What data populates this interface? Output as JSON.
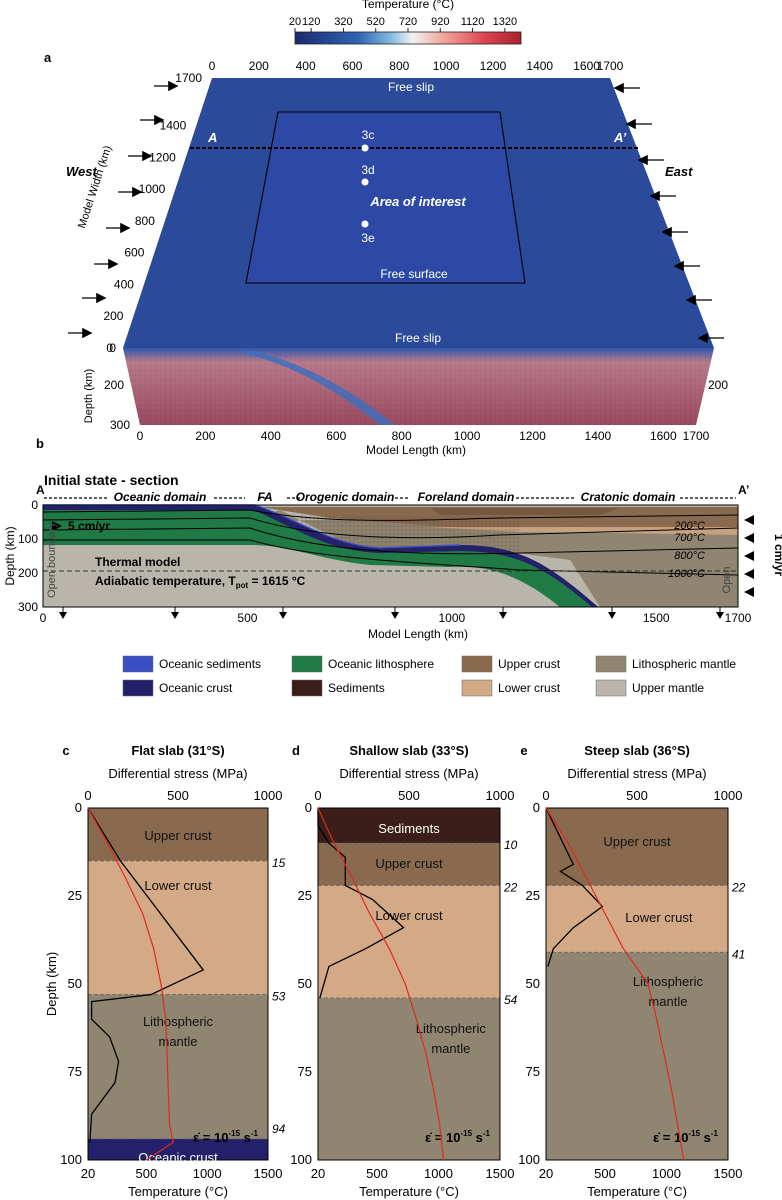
{
  "colorbar": {
    "title": "Temperature (°C)",
    "ticks": [
      "20",
      "120",
      "320",
      "520",
      "720",
      "920",
      "1120",
      "1320"
    ],
    "colors": [
      "#1b2a6e",
      "#2f63b5",
      "#7fb8df",
      "#f2f2f2",
      "#f1a39a",
      "#d9414d",
      "#a8232f"
    ]
  },
  "panel_a": {
    "label": "a",
    "west": "West",
    "east": "East",
    "ylabel_width": "Model Width (km)",
    "ylabel_depth": "Depth (km)",
    "xlabel": "Model Length (km)",
    "top_ticks": [
      "0",
      "200",
      "400",
      "600",
      "800",
      "1000",
      "1200",
      "1400",
      "1600",
      "1700"
    ],
    "width_ticks": [
      "1700",
      "1400",
      "1200",
      "1000",
      "800",
      "600",
      "400",
      "200",
      "0"
    ],
    "depth_ticks_left": [
      "200",
      "300"
    ],
    "depth_tick_right": "200",
    "bottom_ticks": [
      "0",
      "200",
      "400",
      "600",
      "800",
      "1000",
      "1200",
      "1400",
      "1600",
      "1700"
    ],
    "free_slip_top": "Free slip",
    "free_slip_bottom": "Free slip",
    "free_surface": "Free surface",
    "area_of_interest": "Area of interest",
    "profile_a": "A",
    "profile_a2": "A’",
    "points": [
      "3c",
      "3d",
      "3e"
    ]
  },
  "panel_b": {
    "label": "b",
    "title": "Initial state - section",
    "a": "A",
    "a2": "A’",
    "domains": [
      "Oceanic domain",
      "FA",
      "Orogenic domain",
      "Foreland domain",
      "Cratonic domain"
    ],
    "velocity_left": "5 cm/yr",
    "velocity_right": "1 cm/yr",
    "open_boundary": "Open boundary",
    "open_right": "Open",
    "isotherms": [
      "200°C",
      "700°C",
      "800°C",
      "1000°C"
    ],
    "thermal_model": "Thermal model",
    "adiabatic": "Adiabatic temperature, T",
    "adiabatic_sub": "pot",
    "adiabatic_value": " = 1615 °C",
    "ylabel": "Depth (km)",
    "xlabel": "Model Length (km)",
    "yticks": [
      "0",
      "100",
      "200",
      "300"
    ],
    "xticks": [
      "0",
      "500",
      "1000",
      "1500",
      "1700"
    ]
  },
  "legend": [
    {
      "label": "Oceanic sediments",
      "color": "#3b4fc4"
    },
    {
      "label": "Oceanic crust",
      "color": "#24206a"
    },
    {
      "label": "Oceanic lithosphere",
      "color": "#1f7a45"
    },
    {
      "label": "Sediments",
      "color": "#3b1e18"
    },
    {
      "label": "Upper crust",
      "color": "#8a6a4e"
    },
    {
      "label": "Lower crust",
      "color": "#d4a985"
    },
    {
      "label": "Lithospheric mantle",
      "color": "#8f8571"
    },
    {
      "label": "Upper mantle",
      "color": "#b9b5ab"
    }
  ],
  "strength_panels": [
    {
      "label": "c",
      "title": "Flat slab (31°S)",
      "boundaries": [
        "15",
        "53",
        "94"
      ],
      "layers": [
        "Upper crust",
        "Lower crust",
        "Lithospheric mantle",
        "Oceanic crust"
      ]
    },
    {
      "label": "d",
      "title": "Shallow slab (33°S)",
      "boundaries": [
        "10",
        "22",
        "54"
      ],
      "layers": [
        "Sediments",
        "Upper crust",
        "Lower crust",
        "Lithospheric mantle"
      ]
    },
    {
      "label": "e",
      "title": "Steep slab (36°S)",
      "boundaries": [
        "22",
        "41"
      ],
      "layers": [
        "Upper crust",
        "Lower crust",
        "Lithospheric mantle"
      ]
    }
  ],
  "strength_axes": {
    "top_label": "Differential stress (MPa)",
    "top_ticks": [
      "0",
      "500",
      "1000"
    ],
    "bottom_label": "Temperature (°C)",
    "bottom_ticks": [
      "20",
      "500",
      "1000",
      "1500"
    ],
    "ylabel": "Depth (km)",
    "yticks": [
      "0",
      "25",
      "50",
      "75",
      "100"
    ],
    "strain_rate": "ε̇ = 10",
    "strain_exp": "-15",
    "strain_unit": " s",
    "strain_unit_exp": "-1"
  },
  "chart_data": [
    {
      "type": "line",
      "title": "Flat slab (31°S)",
      "xlabel": "Differential stress (MPa)",
      "ylabel": "Depth (km)",
      "ylim": [
        0,
        100
      ],
      "series": [
        {
          "values_stress": [
            [
              0,
              0
            ],
            [
              180,
              15
            ],
            [
              640,
              46
            ],
            [
              350,
              53
            ],
            [
              20,
              55
            ],
            [
              20,
              60
            ],
            [
              120,
              65
            ],
            [
              170,
              72
            ],
            [
              150,
              78
            ],
            [
              20,
              87
            ],
            [
              10,
              95
            ]
          ]
        },
        {
          "values_temperature": [
            [
              20,
              0
            ],
            [
              180,
              10
            ],
            [
              330,
              20
            ],
            [
              470,
              30
            ],
            [
              560,
              40
            ],
            [
              620,
              50
            ],
            [
              660,
              60
            ],
            [
              670,
              70
            ],
            [
              680,
              80
            ],
            [
              690,
              90
            ],
            [
              720,
              95
            ],
            [
              500,
              100
            ]
          ]
        }
      ]
    },
    {
      "type": "line",
      "title": "Shallow slab (33°S)",
      "xlabel": "Differential stress (MPa)",
      "ylabel": "Depth (km)",
      "ylim": [
        0,
        100
      ],
      "series": [
        {
          "values_stress": [
            [
              0,
              0
            ],
            [
              0,
              5
            ],
            [
              60,
              10
            ],
            [
              150,
              14
            ],
            [
              150,
              22
            ],
            [
              300,
              26
            ],
            [
              470,
              34
            ],
            [
              260,
              40
            ],
            [
              60,
              45
            ],
            [
              10,
              54
            ]
          ]
        },
        {
          "values_temperature": [
            [
              20,
              0
            ],
            [
              150,
              10
            ],
            [
              300,
              20
            ],
            [
              440,
              30
            ],
            [
              600,
              40
            ],
            [
              730,
              50
            ],
            [
              820,
              60
            ],
            [
              900,
              70
            ],
            [
              960,
              80
            ],
            [
              1010,
              90
            ],
            [
              1040,
              100
            ]
          ]
        }
      ]
    },
    {
      "type": "line",
      "title": "Steep slab (36°S)",
      "xlabel": "Differential stress (MPa)",
      "ylabel": "Depth (km)",
      "ylim": [
        0,
        100
      ],
      "series": [
        {
          "values_stress": [
            [
              0,
              0
            ],
            [
              150,
              16
            ],
            [
              80,
              18
            ],
            [
              200,
              22
            ],
            [
              310,
              28
            ],
            [
              150,
              34
            ],
            [
              40,
              40
            ],
            [
              10,
              45
            ]
          ]
        },
        {
          "values_temperature": [
            [
              20,
              0
            ],
            [
              200,
              10
            ],
            [
              350,
              20
            ],
            [
              500,
              30
            ],
            [
              650,
              40
            ],
            [
              850,
              50
            ],
            [
              920,
              60
            ],
            [
              980,
              70
            ],
            [
              1040,
              80
            ],
            [
              1090,
              90
            ],
            [
              1140,
              100
            ]
          ]
        }
      ]
    }
  ]
}
